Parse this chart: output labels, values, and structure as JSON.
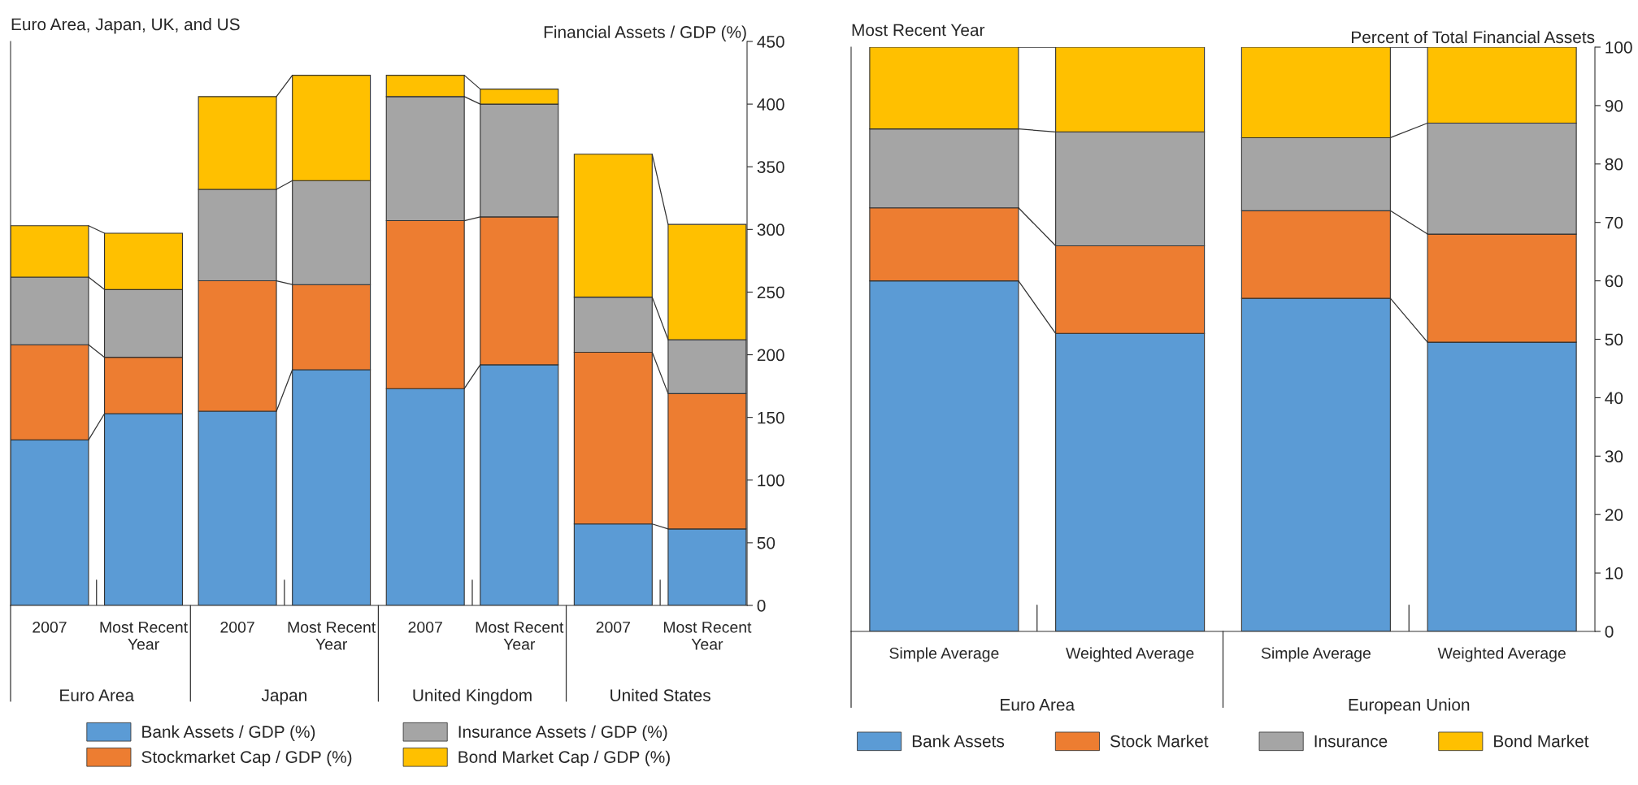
{
  "chart_data": [
    {
      "type": "bar",
      "stacked": true,
      "title": "Euro Area, Japan, UK, and US",
      "ylabel": "Financial Assets / GDP (%)",
      "categories": [
        "2007",
        "Most Recent\nYear",
        "2007",
        "Most Recent\nYear",
        "2007",
        "Most Recent\nYear",
        "2007",
        "Most Recent\nYear"
      ],
      "annotations": [
        "Euro Area",
        "Japan",
        "United Kingdom",
        "United States"
      ],
      "series": [
        {
          "name": "Bank Assets / GDP (%)",
          "color": "#5b9bd5",
          "values": [
            132,
            153,
            155,
            188,
            173,
            192,
            65,
            61
          ]
        },
        {
          "name": "Stockmarket Cap / GDP (%)",
          "color": "#ed7d31",
          "values": [
            76,
            45,
            104,
            68,
            134,
            118,
            137,
            108
          ]
        },
        {
          "name": "Insurance Assets / GDP (%)",
          "color": "#a5a5a5",
          "values": [
            54,
            54,
            73,
            83,
            99,
            90,
            44,
            43
          ]
        },
        {
          "name": "Bond Market Cap / GDP (%)",
          "color": "#ffc000",
          "values": [
            41,
            45,
            74,
            84,
            17,
            12,
            114,
            92
          ]
        }
      ],
      "ylim": [
        0,
        450
      ],
      "yticks": [
        0,
        50,
        100,
        150,
        200,
        250,
        300,
        350,
        400,
        450
      ],
      "legend": "bottom"
    },
    {
      "type": "bar",
      "stacked": true,
      "title": "Most Recent Year",
      "ylabel": "Percent of Total Financial Assets",
      "categories": [
        "Simple Average",
        "Weighted Average",
        "Simple Average",
        "Weighted Average"
      ],
      "annotations": [
        "Euro Area",
        "European Union"
      ],
      "series": [
        {
          "name": "Bank Assets",
          "color": "#5b9bd5",
          "values": [
            60,
            51,
            57,
            49.5
          ]
        },
        {
          "name": "Stock Market",
          "color": "#ed7d31",
          "values": [
            12.5,
            15,
            15,
            18.5
          ]
        },
        {
          "name": "Insurance",
          "color": "#a5a5a5",
          "values": [
            13.5,
            19.5,
            12.5,
            19
          ]
        },
        {
          "name": "Bond Market",
          "color": "#ffc000",
          "values": [
            14,
            14.5,
            15.5,
            13
          ]
        }
      ],
      "ylim": [
        0,
        100
      ],
      "yticks": [
        0,
        10,
        20,
        30,
        40,
        50,
        60,
        70,
        80,
        90,
        100
      ],
      "legend": "bottom"
    }
  ]
}
